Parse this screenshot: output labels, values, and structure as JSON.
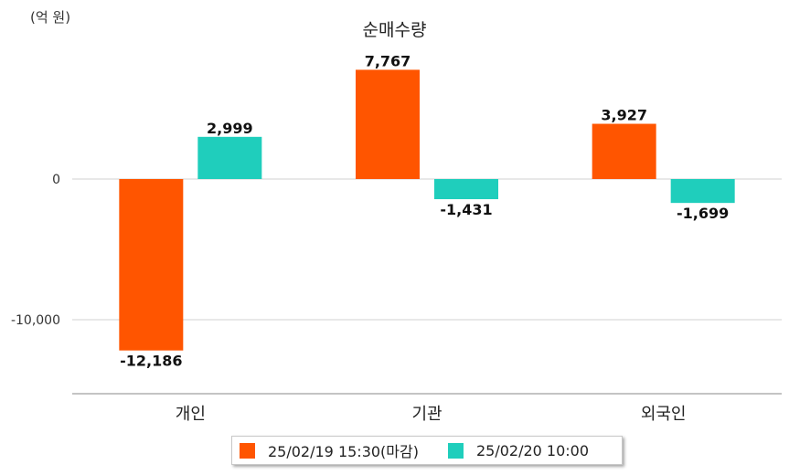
{
  "chart_data": {
    "type": "bar",
    "title": "순매수량",
    "unit_label": "(억 원)",
    "categories": [
      "개인",
      "기관",
      "외국인"
    ],
    "series": [
      {
        "name": "25/02/19 15:30(마감)",
        "color": "#ff5500",
        "values": [
          -12186,
          7767,
          3927
        ],
        "labels": [
          "-12,186",
          "7,767",
          "3,927"
        ]
      },
      {
        "name": "25/02/20 10:00",
        "color": "#1fcebc",
        "values": [
          2999,
          -1431,
          -1699
        ],
        "labels": [
          "2,999",
          "-1,431",
          "-1,699"
        ]
      }
    ],
    "y_ticks": [
      0,
      -10000
    ],
    "y_tick_labels": [
      "0",
      "-10,000"
    ],
    "ylim": [
      -15000,
      7767
    ],
    "grid": true,
    "legend_position": "bottom"
  }
}
